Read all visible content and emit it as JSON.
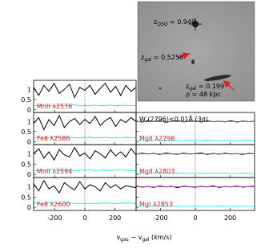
{
  "chart_data": [
    {
      "type": "line",
      "label": "MnII λ2576",
      "x": [
        -340,
        -306,
        -272,
        -238,
        -204,
        -170,
        -136,
        -102,
        -68,
        -34,
        0,
        34,
        68,
        102,
        136,
        170,
        204,
        238,
        272,
        306,
        340
      ],
      "xlim": [
        -340,
        340
      ],
      "ylim": [
        -0.15,
        1.45
      ],
      "xticks": [
        -200,
        0,
        200
      ],
      "yticks": [
        0,
        0.5,
        1
      ],
      "series": [
        {
          "color": "#000000",
          "values": [
            1.1,
            0.7,
            1.2,
            0.9,
            1.3,
            0.8,
            1.0,
            1.25,
            0.6,
            1.1,
            0.95,
            1.2,
            0.75,
            1.05,
            1.3,
            0.85,
            1.15,
            0.7,
            1.2,
            0.9,
            1.1
          ]
        },
        {
          "color": "#00e5e5",
          "values": [
            0.2,
            0.18,
            0.22,
            0.2,
            0.17,
            0.21,
            0.19,
            0.2,
            0.23,
            0.2,
            0.18,
            0.2,
            0.21,
            0.19,
            0.2,
            0.22,
            0.18,
            0.2,
            0.21,
            0.19,
            0.2
          ]
        }
      ]
    },
    {
      "type": "line",
      "label": "FeII λ2586",
      "x": [
        -340,
        -306,
        -272,
        -238,
        -204,
        -170,
        -136,
        -102,
        -68,
        -34,
        0,
        34,
        68,
        102,
        136,
        170,
        204,
        238,
        272,
        306,
        340
      ],
      "xlim": [
        -340,
        340
      ],
      "ylim": [
        -0.15,
        1.45
      ],
      "xticks": [
        -200,
        0,
        200
      ],
      "yticks": [
        0,
        0.5,
        1
      ],
      "series": [
        {
          "color": "#000000",
          "values": [
            0.9,
            1.2,
            0.6,
            1.1,
            0.8,
            1.3,
            0.7,
            1.0,
            1.15,
            0.85,
            1.1,
            0.9,
            1.25,
            0.8,
            1.05,
            1.2,
            0.75,
            1.1,
            0.95,
            1.2,
            1.0
          ]
        },
        {
          "color": "#00e5e5",
          "values": [
            0.19,
            0.21,
            0.2,
            0.18,
            0.22,
            0.2,
            0.19,
            0.21,
            0.2,
            0.18,
            0.2,
            0.22,
            0.19,
            0.2,
            0.21,
            0.18,
            0.2,
            0.19,
            0.22,
            0.2,
            0.19
          ]
        }
      ]
    },
    {
      "type": "line",
      "label": "MnII λ2594",
      "x": [
        -340,
        -306,
        -272,
        -238,
        -204,
        -170,
        -136,
        -102,
        -68,
        -34,
        0,
        34,
        68,
        102,
        136,
        170,
        204,
        238,
        272,
        306,
        340
      ],
      "xlim": [
        -340,
        340
      ],
      "ylim": [
        -0.15,
        1.45
      ],
      "xticks": [
        -200,
        0,
        200
      ],
      "yticks": [
        0,
        0.5,
        1
      ],
      "series": [
        {
          "color": "#000000",
          "values": [
            1.0,
            1.25,
            0.8,
            1.1,
            0.7,
            1.2,
            0.95,
            0.85,
            1.3,
            0.9,
            1.05,
            0.75,
            1.15,
            1.0,
            0.8,
            1.2,
            0.9,
            1.1,
            0.85,
            1.25,
            0.95
          ]
        },
        {
          "color": "#00e5e5",
          "values": [
            0.2,
            0.19,
            0.21,
            0.2,
            0.22,
            0.18,
            0.2,
            0.21,
            0.19,
            0.2,
            0.2,
            0.22,
            0.18,
            0.2,
            0.21,
            0.19,
            0.2,
            0.22,
            0.2,
            0.18,
            0.2
          ]
        }
      ]
    },
    {
      "type": "line",
      "label": "FeII λ2600",
      "x": [
        -340,
        -306,
        -272,
        -238,
        -204,
        -170,
        -136,
        -102,
        -68,
        -34,
        0,
        34,
        68,
        102,
        136,
        170,
        204,
        238,
        272,
        306,
        340
      ],
      "xlim": [
        -340,
        340
      ],
      "ylim": [
        -0.15,
        1.45
      ],
      "xticks": [
        -200,
        0,
        200
      ],
      "yticks": [
        0,
        0.5,
        1
      ],
      "series": [
        {
          "color": "#000000",
          "values": [
            1.15,
            0.8,
            1.3,
            0.9,
            1.05,
            0.7,
            1.2,
            1.0,
            0.85,
            1.25,
            0.9,
            1.1,
            1.0,
            0.8,
            1.2,
            0.95,
            1.1,
            0.9,
            1.05,
            1.0,
            0.95
          ]
        },
        {
          "color": "#00e5e5",
          "values": [
            0.21,
            0.2,
            0.19,
            0.22,
            0.2,
            0.18,
            0.2,
            0.21,
            0.19,
            0.2,
            0.18,
            0.2,
            0.19,
            0.2,
            0.21,
            0.2,
            0.19,
            0.2,
            0.21,
            0.2,
            0.19
          ]
        }
      ]
    },
    {
      "type": "line",
      "label": "MgII λ2796",
      "annotation": [
        {
          "t": "W"
        },
        {
          "sub": "r"
        },
        {
          "t": "(2796)<0.01Å (3σ)"
        }
      ],
      "x": [
        -340,
        -306,
        -272,
        -238,
        -204,
        -170,
        -136,
        -102,
        -68,
        -34,
        0,
        34,
        68,
        102,
        136,
        170,
        204,
        238,
        272,
        306,
        340
      ],
      "xlim": [
        -340,
        340
      ],
      "ylim": [
        -0.15,
        1.45
      ],
      "xticks": [
        -200,
        0,
        200
      ],
      "yticks": [
        0,
        0.5,
        1
      ],
      "series": [
        {
          "color": "#000000",
          "values": [
            1.02,
            0.97,
            1.03,
            0.99,
            1.04,
            0.96,
            1.01,
            1.03,
            0.98,
            1.0,
            1.02,
            0.97,
            1.03,
            0.99,
            1.01,
            0.98,
            1.04,
            0.97,
            1.02,
            0.99,
            1.01
          ]
        },
        {
          "color": "#00e5e5",
          "values": [
            0.05,
            0.05,
            0.06,
            0.05,
            0.05,
            0.06,
            0.05,
            0.05,
            0.05,
            0.06,
            0.05,
            0.05,
            0.06,
            0.05,
            0.05,
            0.05,
            0.06,
            0.05,
            0.05,
            0.06,
            0.05
          ]
        },
        {
          "color": "#c040c0",
          "values": [
            1,
            1,
            1,
            1,
            1,
            1,
            1,
            1,
            1,
            1,
            1,
            1,
            1,
            1,
            1,
            1,
            1,
            1,
            1,
            1,
            1
          ]
        }
      ]
    },
    {
      "type": "line",
      "label": "MgII λ2803",
      "x": [
        -340,
        -306,
        -272,
        -238,
        -204,
        -170,
        -136,
        -102,
        -68,
        -34,
        0,
        34,
        68,
        102,
        136,
        170,
        204,
        238,
        272,
        306,
        340
      ],
      "xlim": [
        -340,
        340
      ],
      "ylim": [
        -0.15,
        1.45
      ],
      "xticks": [
        -200,
        0,
        200
      ],
      "yticks": [
        0,
        0.5,
        1
      ],
      "series": [
        {
          "color": "#000000",
          "values": [
            0.98,
            1.03,
            0.99,
            1.02,
            0.97,
            1.04,
            1.0,
            0.98,
            1.03,
            0.99,
            1.01,
            1.04,
            0.97,
            1.02,
            0.98,
            1.03,
            0.99,
            1.01,
            0.97,
            1.02,
            1.0
          ]
        },
        {
          "color": "#00e5e5",
          "values": [
            0.05,
            0.06,
            0.05,
            0.05,
            0.06,
            0.05,
            0.05,
            0.05,
            0.06,
            0.05,
            0.05,
            0.06,
            0.05,
            0.05,
            0.05,
            0.06,
            0.05,
            0.05,
            0.06,
            0.05,
            0.05
          ]
        },
        {
          "color": "#c040c0",
          "values": [
            1,
            1,
            1,
            1,
            1,
            1,
            1,
            1,
            1,
            1,
            1,
            1,
            1,
            1,
            1,
            1,
            1,
            1,
            1,
            1,
            1
          ]
        }
      ]
    },
    {
      "type": "line",
      "label": "MgI λ2853",
      "x": [
        -340,
        -306,
        -272,
        -238,
        -204,
        -170,
        -136,
        -102,
        -68,
        -34,
        0,
        34,
        68,
        102,
        136,
        170,
        204,
        238,
        272,
        306,
        340
      ],
      "xlim": [
        -340,
        340
      ],
      "ylim": [
        -0.15,
        1.45
      ],
      "xticks": [
        -200,
        0,
        200
      ],
      "yticks": [
        0,
        0.5,
        1
      ],
      "series": [
        {
          "color": "#000000",
          "values": [
            1.03,
            0.98,
            1.01,
            0.97,
            1.04,
            0.99,
            1.02,
            0.96,
            1.03,
            1.0,
            0.98,
            1.02,
            0.99,
            1.04,
            0.97,
            1.01,
            0.99,
            1.03,
            0.98,
            1.01,
            1.02
          ]
        },
        {
          "color": "#00e5e5",
          "values": [
            0.06,
            0.05,
            0.05,
            0.06,
            0.05,
            0.05,
            0.05,
            0.06,
            0.05,
            0.05,
            0.06,
            0.05,
            0.05,
            0.05,
            0.06,
            0.05,
            0.05,
            0.06,
            0.05,
            0.05,
            0.05
          ]
        },
        {
          "color": "#c040c0",
          "values": [
            1,
            1,
            1,
            1,
            1,
            1,
            1,
            1,
            1,
            1,
            1,
            1,
            1,
            1,
            1,
            1,
            1,
            1,
            1,
            1,
            1
          ]
        }
      ]
    }
  ],
  "xlabel": [
    {
      "t": "v"
    },
    {
      "sub": "gas"
    },
    {
      "t": " − v"
    },
    {
      "sub": "gal"
    },
    {
      "t": " (km/s)"
    }
  ],
  "inset": {
    "labels": [
      [
        {
          "t": "z"
        },
        {
          "sub": "QSO"
        },
        {
          "t": " = 0.940"
        }
      ],
      [
        {
          "t": "z"
        },
        {
          "sub": "gal"
        },
        {
          "t": " = 0.5258"
        }
      ],
      [
        {
          "t": "z"
        },
        {
          "sub": "gal"
        },
        {
          "t": " = 0.199"
        }
      ],
      [
        {
          "t": "ρ = 48 kpc"
        }
      ]
    ]
  }
}
